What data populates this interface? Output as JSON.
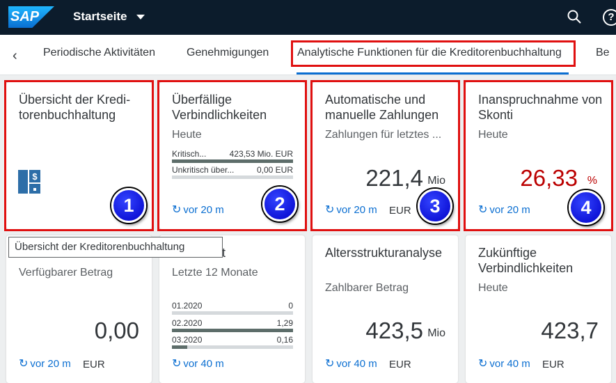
{
  "shell": {
    "logo": "SAP",
    "title": "Startseite"
  },
  "tabs": [
    "Periodische Aktivitäten",
    "Genehmigungen",
    "Analytische Funktionen für die Kreditorenbuchhaltung",
    "Be"
  ],
  "colors": {
    "accent": "#0a6ed1",
    "negative": "#bb0000",
    "highlight": "#e01010",
    "badge": "#0000c8"
  },
  "tiles": {
    "t1": {
      "title": "Übersicht der Kredi-torenbuchhaltung",
      "icon": "accounts-payable-icon"
    },
    "t2": {
      "title": "Überfällige Verbindlichkeiten",
      "subtitle": "Heute",
      "rows": [
        {
          "label": "Kritisch...",
          "value": "423,53 Mio. EUR",
          "fraction": 1.0
        },
        {
          "label": "Unkritisch über...",
          "value": "0,00 EUR",
          "fraction": 0.0
        }
      ],
      "footer": "vor 20 m"
    },
    "t3": {
      "title": "Automatische und manuelle Zahlungen",
      "subtitle": "Zahlungen für letztes ...",
      "value": "221,4",
      "scale": "Mio",
      "footer": "vor 20 m",
      "unit": "EUR"
    },
    "t4": {
      "title": "Inanspruchnahme von Skonti",
      "subtitle": "Heute",
      "value": "26,33",
      "scale": "%",
      "footer": "vor 20 m"
    },
    "t5": {
      "subtitle": "Verfügbarer Betrag",
      "value": "0,00",
      "footer": "vor 20 m",
      "unit": "EUR"
    },
    "t6": {
      "title": "enlaufzeit",
      "subtitle": "Letzte 12 Monate",
      "rows": [
        {
          "label": "01.2020",
          "value": "0",
          "fraction": 0.0
        },
        {
          "label": "02.2020",
          "value": "1,29",
          "fraction": 1.0
        },
        {
          "label": "03.2020",
          "value": "0,16",
          "fraction": 0.124
        }
      ],
      "footer": "vor 40 m"
    },
    "t7": {
      "title": "Altersstrukturanalyse",
      "subtitle": "Zahlbarer Betrag",
      "value": "423,5",
      "scale": "Mio",
      "footer": "vor 40 m",
      "unit": "EUR"
    },
    "t8": {
      "title": "Zukünftige Verbindlichkeiten",
      "subtitle": "Heute",
      "value": "423,7",
      "footer": "vor 40 m",
      "unit": "EUR"
    }
  },
  "badges": [
    "1",
    "2",
    "3",
    "4"
  ],
  "tooltip": "Übersicht der Kreditorenbuchhaltung"
}
